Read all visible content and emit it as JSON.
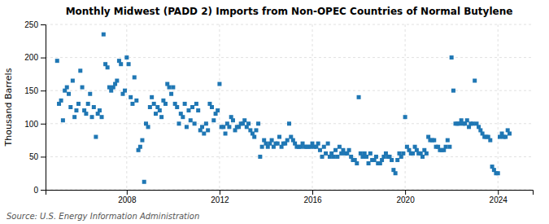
{
  "chart_data": {
    "type": "scatter",
    "title": "Monthly Midwest (PADD 2) Imports from Non-OPEC Countries of Normal Butylene",
    "y_label": "Thousand Barrels",
    "annotations": [
      "Source: U.S. Energy Information Administration"
    ],
    "marker": "square",
    "grid": true,
    "xlim": [
      2004.5,
      2025.5
    ],
    "xticks": [
      2008,
      2012,
      2016,
      2020,
      2024
    ],
    "ylim": [
      0,
      250
    ],
    "yticks": [
      0,
      50,
      100,
      150,
      200,
      250
    ],
    "x": [
      2005.0,
      2005.08,
      2005.17,
      2005.25,
      2005.33,
      2005.42,
      2005.5,
      2005.58,
      2005.67,
      2005.75,
      2005.83,
      2005.92,
      2006.0,
      2006.08,
      2006.17,
      2006.25,
      2006.33,
      2006.42,
      2006.5,
      2006.58,
      2006.67,
      2006.75,
      2006.83,
      2006.92,
      2007.0,
      2007.08,
      2007.17,
      2007.25,
      2007.33,
      2007.42,
      2007.5,
      2007.58,
      2007.67,
      2007.75,
      2007.83,
      2007.92,
      2008.0,
      2008.08,
      2008.17,
      2008.25,
      2008.33,
      2008.42,
      2008.5,
      2008.58,
      2008.67,
      2008.75,
      2008.83,
      2008.92,
      2009.0,
      2009.08,
      2009.17,
      2009.25,
      2009.33,
      2009.42,
      2009.5,
      2009.58,
      2009.67,
      2009.75,
      2009.83,
      2009.92,
      2010.0,
      2010.08,
      2010.17,
      2010.25,
      2010.33,
      2010.42,
      2010.5,
      2010.58,
      2010.67,
      2010.75,
      2010.83,
      2010.92,
      2011.0,
      2011.08,
      2011.17,
      2011.25,
      2011.33,
      2011.42,
      2011.5,
      2011.58,
      2011.67,
      2011.75,
      2011.83,
      2011.92,
      2012.0,
      2012.08,
      2012.17,
      2012.25,
      2012.33,
      2012.42,
      2012.5,
      2012.58,
      2012.67,
      2012.75,
      2012.83,
      2012.92,
      2013.0,
      2013.08,
      2013.17,
      2013.25,
      2013.33,
      2013.42,
      2013.5,
      2013.58,
      2013.67,
      2013.75,
      2013.83,
      2013.92,
      2014.0,
      2014.08,
      2014.17,
      2014.25,
      2014.33,
      2014.42,
      2014.5,
      2014.58,
      2014.67,
      2014.75,
      2014.83,
      2014.92,
      2015.0,
      2015.08,
      2015.17,
      2015.25,
      2015.33,
      2015.42,
      2015.5,
      2015.58,
      2015.67,
      2015.75,
      2015.83,
      2015.92,
      2016.0,
      2016.08,
      2016.17,
      2016.25,
      2016.33,
      2016.42,
      2016.5,
      2016.58,
      2016.67,
      2016.75,
      2016.83,
      2016.92,
      2017.0,
      2017.08,
      2017.17,
      2017.25,
      2017.33,
      2017.42,
      2017.5,
      2017.58,
      2017.67,
      2017.75,
      2017.83,
      2017.92,
      2018.0,
      2018.08,
      2018.17,
      2018.25,
      2018.33,
      2018.42,
      2018.5,
      2018.58,
      2018.67,
      2018.75,
      2018.83,
      2018.92,
      2019.0,
      2019.08,
      2019.17,
      2019.25,
      2019.33,
      2019.42,
      2019.5,
      2019.58,
      2019.67,
      2019.75,
      2019.83,
      2019.92,
      2020.0,
      2020.08,
      2020.17,
      2020.25,
      2020.33,
      2020.42,
      2020.5,
      2020.58,
      2020.67,
      2020.75,
      2020.83,
      2020.92,
      2021.0,
      2021.08,
      2021.17,
      2021.25,
      2021.33,
      2021.42,
      2021.5,
      2021.58,
      2021.67,
      2021.75,
      2021.83,
      2021.92,
      2022.0,
      2022.08,
      2022.17,
      2022.25,
      2022.33,
      2022.42,
      2022.5,
      2022.58,
      2022.67,
      2022.75,
      2022.83,
      2022.92,
      2023.0,
      2023.08,
      2023.17,
      2023.25,
      2023.33,
      2023.42,
      2023.5,
      2023.58,
      2023.67,
      2023.75,
      2023.83,
      2023.92,
      2024.0,
      2024.08,
      2024.17,
      2024.25,
      2024.33,
      2024.42,
      2024.5
    ],
    "values": [
      195,
      130,
      135,
      105,
      150,
      155,
      145,
      125,
      165,
      110,
      120,
      130,
      180,
      155,
      120,
      115,
      130,
      145,
      110,
      125,
      80,
      115,
      120,
      110,
      235,
      190,
      185,
      155,
      150,
      155,
      160,
      165,
      195,
      190,
      145,
      150,
      200,
      190,
      140,
      130,
      170,
      135,
      60,
      65,
      75,
      12,
      100,
      95,
      125,
      140,
      130,
      115,
      125,
      120,
      110,
      135,
      130,
      160,
      155,
      145,
      155,
      130,
      125,
      100,
      115,
      110,
      130,
      95,
      120,
      105,
      125,
      100,
      130,
      120,
      90,
      95,
      85,
      100,
      90,
      130,
      125,
      105,
      115,
      120,
      160,
      95,
      95,
      85,
      100,
      95,
      110,
      105,
      90,
      95,
      95,
      100,
      100,
      105,
      95,
      100,
      90,
      85,
      80,
      90,
      100,
      50,
      65,
      75,
      70,
      65,
      70,
      75,
      65,
      70,
      70,
      80,
      65,
      70,
      70,
      75,
      100,
      80,
      75,
      70,
      65,
      65,
      65,
      70,
      65,
      65,
      65,
      65,
      70,
      65,
      65,
      70,
      60,
      50,
      65,
      55,
      70,
      50,
      55,
      50,
      60,
      50,
      65,
      55,
      60,
      55,
      55,
      60,
      50,
      45,
      45,
      40,
      140,
      55,
      50,
      55,
      50,
      40,
      55,
      45,
      45,
      50,
      40,
      40,
      45,
      50,
      55,
      50,
      50,
      45,
      30,
      25,
      45,
      55,
      50,
      55,
      110,
      65,
      60,
      55,
      55,
      65,
      60,
      55,
      55,
      50,
      60,
      55,
      80,
      75,
      75,
      75,
      65,
      65,
      60,
      60,
      60,
      65,
      75,
      65,
      200,
      150,
      100,
      100,
      100,
      105,
      100,
      100,
      105,
      95,
      100,
      100,
      165,
      100,
      95,
      90,
      85,
      80,
      80,
      80,
      75,
      35,
      30,
      25,
      25,
      80,
      85,
      80,
      80,
      90,
      85
    ]
  }
}
